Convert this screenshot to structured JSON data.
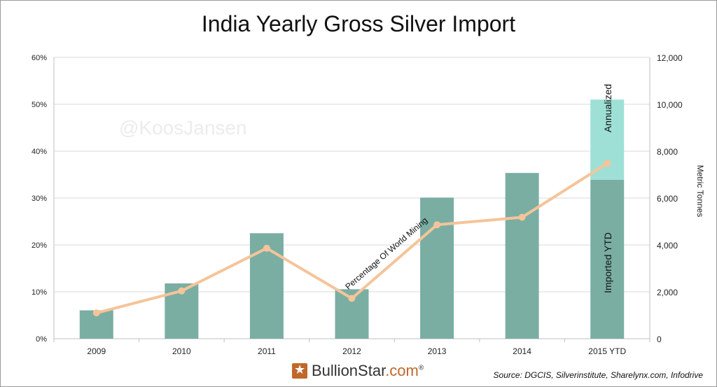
{
  "title": "India Yearly Gross Silver Import",
  "watermark": "@KoosJansen",
  "source": "Source: DGCIS, Silverinstitute, Sharelynx.com, Infodrive",
  "logo": {
    "name": "BullionStar",
    "suffix": ".com",
    "reg": "®"
  },
  "chart_data": {
    "type": "bar",
    "categories": [
      "2009",
      "2010",
      "2011",
      "2012",
      "2013",
      "2014",
      "2015 YTD"
    ],
    "series": [
      {
        "name": "Imported YTD",
        "type": "bar",
        "axis": "right",
        "color": "#7aaea3",
        "values": [
          1210,
          2360,
          4500,
          2110,
          6020,
          7070,
          6780
        ]
      },
      {
        "name": "Annualized",
        "type": "bar",
        "axis": "right",
        "stacked_on": "Imported YTD",
        "color": "#9ee0d6",
        "values": [
          0,
          0,
          0,
          0,
          0,
          0,
          3420
        ]
      },
      {
        "name": "Percentage Of World Mining",
        "type": "line",
        "axis": "left",
        "color": "#f5c49a",
        "values": [
          5.5,
          10.2,
          19.3,
          8.6,
          24.3,
          25.9,
          37.4
        ]
      }
    ],
    "left_axis": {
      "label": "",
      "range": [
        0,
        60
      ],
      "ticks": [
        "0%",
        "10%",
        "20%",
        "30%",
        "40%",
        "50%",
        "60%"
      ]
    },
    "right_axis": {
      "label": "Metric Tonnes",
      "range": [
        0,
        12000
      ],
      "ticks": [
        "0",
        "2,000",
        "4,000",
        "6,000",
        "8,000",
        "10,000",
        "12,000"
      ]
    },
    "grid": true,
    "bar_annotations": {
      "imported": "Imported YTD",
      "annualized": "Annualized"
    },
    "line_annotation": "Percentage Of World Mining"
  }
}
